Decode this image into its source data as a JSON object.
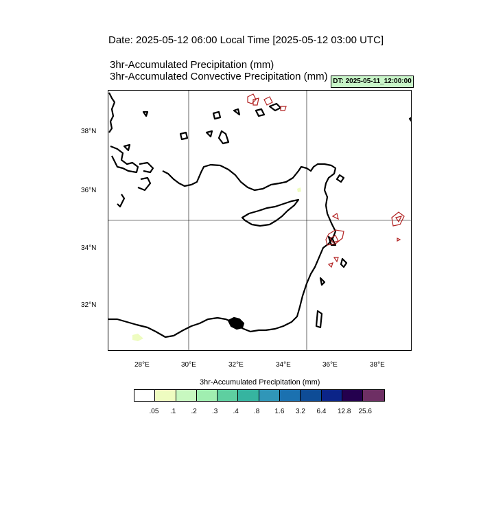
{
  "header": {
    "date_line": "Date: 2025-05-12  06:00 Local Time [2025-05-12  03:00 UTC]",
    "title_line1": "3hr-Accumulated Precipitation   (mm)",
    "title_line2": "3hr-Accumulated Convective Precipitation   (mm)",
    "dt_badge": "DT: 2025-05-11_12:00:00",
    "dt_badge_color": "#c8f5c8"
  },
  "map": {
    "region": "Eastern Mediterranean",
    "lon_range": [
      26.6,
      39.4
    ],
    "lat_range": [
      30.45,
      39.5
    ],
    "lon_ticks": [
      "28°E",
      "30°E",
      "32°E",
      "34°E",
      "36°E",
      "38°E"
    ],
    "lat_ticks": [
      "38°N",
      "36°N",
      "34°N",
      "32°N"
    ],
    "grid_lines": {
      "lon": [
        30,
        35
      ],
      "lat": [
        35
      ]
    },
    "coastline_color": "#000000",
    "convective_contour_color": "#b22222"
  },
  "colorbar": {
    "title": "3hr-Accumulated Precipitation   (mm)",
    "colors": [
      "#ffffff",
      "#eefcc0",
      "#c8f8c0",
      "#a0eeb0",
      "#5ecfa0",
      "#36b4a0",
      "#3096b8",
      "#1b71b0",
      "#0e4c96",
      "#0b2488",
      "#24004e",
      "#6e2f64"
    ],
    "labels": [
      ".05",
      ".1",
      ".2",
      ".3",
      ".4",
      ".8",
      "1.6",
      "3.2",
      "6.4",
      "12.8",
      "25.6"
    ]
  }
}
